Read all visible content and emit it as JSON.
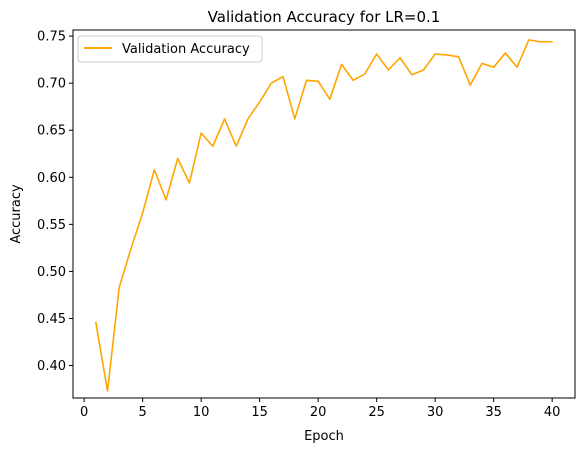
{
  "chart_data": {
    "type": "line",
    "title": "Validation Accuracy for LR=0.1",
    "xlabel": "Epoch",
    "ylabel": "Accuracy",
    "xlim": [
      -0.95,
      41.95
    ],
    "ylim": [
      0.3655,
      0.7565
    ],
    "xticks": [
      0,
      5,
      10,
      15,
      20,
      25,
      30,
      35,
      40
    ],
    "yticks": [
      0.4,
      0.45,
      0.5,
      0.55,
      0.6,
      0.65,
      0.7,
      0.75
    ],
    "ytick_labels": [
      "0.40",
      "0.45",
      "0.50",
      "0.55",
      "0.60",
      "0.65",
      "0.70",
      "0.75"
    ],
    "grid": false,
    "legend": "upper-left",
    "series": [
      {
        "name": "Validation Accuracy",
        "color": "#ffa500",
        "x": [
          1,
          2,
          3,
          4,
          5,
          6,
          7,
          8,
          9,
          10,
          11,
          12,
          13,
          14,
          15,
          16,
          17,
          18,
          19,
          20,
          21,
          22,
          23,
          24,
          25,
          26,
          27,
          28,
          29,
          30,
          31,
          32,
          33,
          34,
          35,
          36,
          37,
          38,
          39,
          40
        ],
        "values": [
          0.446,
          0.373,
          0.483,
          0.524,
          0.562,
          0.608,
          0.576,
          0.62,
          0.594,
          0.647,
          0.633,
          0.662,
          0.633,
          0.662,
          0.68,
          0.7,
          0.707,
          0.662,
          0.703,
          0.702,
          0.683,
          0.72,
          0.703,
          0.71,
          0.731,
          0.714,
          0.727,
          0.709,
          0.714,
          0.731,
          0.73,
          0.728,
          0.698,
          0.721,
          0.717,
          0.732,
          0.717,
          0.746,
          0.744,
          0.744
        ]
      }
    ]
  }
}
